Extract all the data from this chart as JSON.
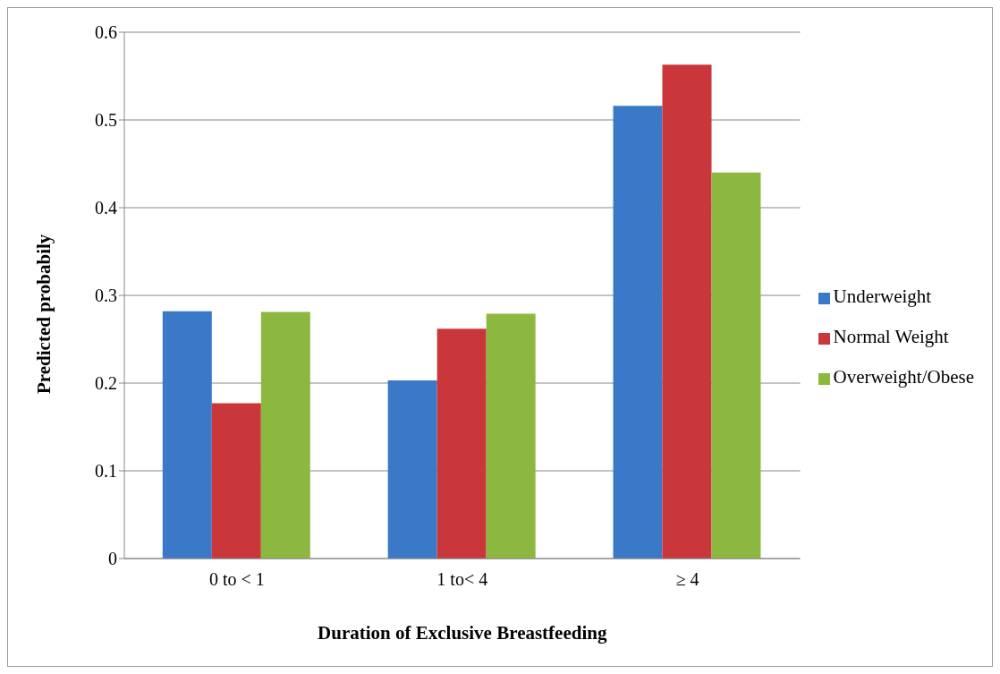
{
  "chart_data": {
    "type": "bar",
    "xlabel": "Duration of Exclusive Breastfeeding",
    "ylabel": "Predicted probabily",
    "categories": [
      "0 to < 1",
      "1 to< 4",
      "≥ 4"
    ],
    "series": [
      {
        "name": "Underweight",
        "color": "#3a78c8",
        "values": [
          0.282,
          0.203,
          0.516
        ]
      },
      {
        "name": "Normal Weight",
        "color": "#c9373a",
        "values": [
          0.177,
          0.262,
          0.563
        ]
      },
      {
        "name": "Overweight/Obese",
        "color": "#8db840",
        "values": [
          0.281,
          0.279,
          0.44
        ]
      }
    ],
    "ylim": [
      0,
      0.6
    ],
    "yticks": [
      0,
      0.1,
      0.2,
      0.3,
      0.4,
      0.5,
      0.6
    ],
    "grid": "y",
    "legend": "right"
  }
}
